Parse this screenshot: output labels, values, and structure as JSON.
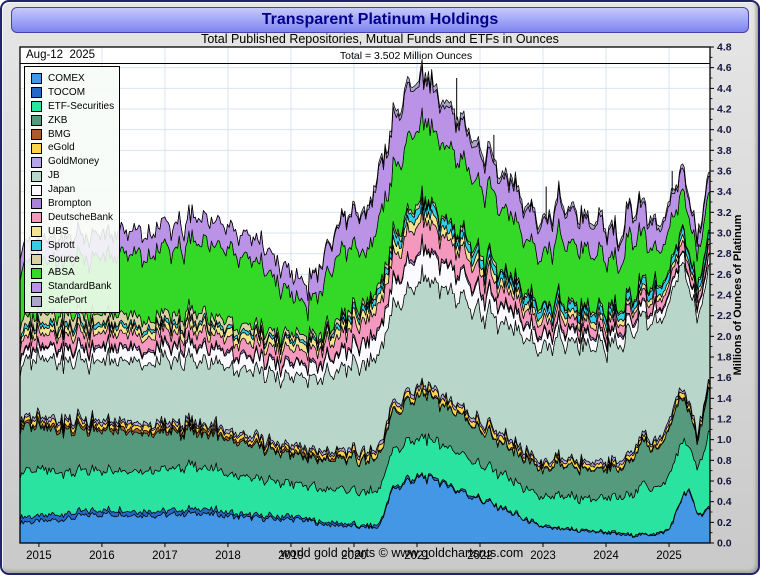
{
  "window": {
    "title": "Transparent Platinum Holdings"
  },
  "subtitle": "Total Published Repositories, Mutual Funds and ETFs in Ounces",
  "annotations": {
    "date_label": "Aug-12  2025",
    "total_label": "Total = 3.502 Million Ounces"
  },
  "footer": "world gold charts  © www.goldchartsrus.com",
  "colors": {
    "titlebar_top": "#c6c9fb",
    "titlebar_bottom": "#7e84ef",
    "title_text": "#00008c",
    "grid": "#d9e4f2",
    "axis_label": "#15153f"
  },
  "chart_data": {
    "type": "area",
    "stacked": true,
    "title": "Transparent Platinum Holdings",
    "ylabel": "Millions of Ounces of Platinum",
    "xlabel": "",
    "ylim": [
      0,
      4.8
    ],
    "y_step": 0.2,
    "xlim": [
      2014.7,
      2025.65
    ],
    "x_ticks": [
      2015,
      2016,
      2017,
      2018,
      2019,
      2020,
      2021,
      2022,
      2023,
      2024,
      2025
    ],
    "grid": true,
    "grid_color": "#d9e4f2",
    "legend_position": "top-left",
    "latest_total": 3.502,
    "x": [
      2014.7,
      2015.0,
      2015.25,
      2015.5,
      2015.75,
      2016.0,
      2016.25,
      2016.5,
      2016.75,
      2017.0,
      2017.25,
      2017.5,
      2017.75,
      2018.0,
      2018.25,
      2018.5,
      2018.75,
      2019.0,
      2019.25,
      2019.5,
      2019.75,
      2020.0,
      2020.2,
      2020.4,
      2020.6,
      2020.8,
      2021.0,
      2021.2,
      2021.4,
      2021.6,
      2021.8,
      2022.0,
      2022.25,
      2022.5,
      2022.75,
      2023.0,
      2023.25,
      2023.5,
      2023.75,
      2024.0,
      2024.2,
      2024.4,
      2024.6,
      2024.8,
      2025.0,
      2025.15,
      2025.3,
      2025.45,
      2025.6
    ],
    "series": [
      {
        "name": "COMEX",
        "color": "#4397e4",
        "values": [
          0.2,
          0.21,
          0.22,
          0.24,
          0.27,
          0.28,
          0.28,
          0.27,
          0.27,
          0.27,
          0.28,
          0.29,
          0.28,
          0.26,
          0.25,
          0.24,
          0.23,
          0.23,
          0.22,
          0.18,
          0.17,
          0.16,
          0.15,
          0.15,
          0.5,
          0.58,
          0.62,
          0.63,
          0.58,
          0.52,
          0.47,
          0.42,
          0.36,
          0.29,
          0.21,
          0.15,
          0.13,
          0.12,
          0.11,
          0.1,
          0.08,
          0.07,
          0.08,
          0.08,
          0.12,
          0.35,
          0.52,
          0.28,
          0.3
        ]
      },
      {
        "name": "TOCOM",
        "color": "#2468c8",
        "values": [
          0.05,
          0.05,
          0.05,
          0.05,
          0.04,
          0.04,
          0.04,
          0.04,
          0.04,
          0.04,
          0.04,
          0.04,
          0.04,
          0.04,
          0.03,
          0.03,
          0.03,
          0.03,
          0.02,
          0.02,
          0.02,
          0.02,
          0.02,
          0.02,
          0.02,
          0.02,
          0.02,
          0.02,
          0.02,
          0.02,
          0.02,
          0.01,
          0.01,
          0.01,
          0.01,
          0.01,
          0.01,
          0.01,
          0.01,
          0.01,
          0.01,
          0.01,
          0.01,
          0.01,
          0.01,
          0.01,
          0.01,
          0.01,
          0.01
        ]
      },
      {
        "name": "ETF-Securities",
        "color": "#2be3a0",
        "values": [
          0.45,
          0.44,
          0.42,
          0.4,
          0.39,
          0.38,
          0.38,
          0.38,
          0.39,
          0.4,
          0.41,
          0.41,
          0.4,
          0.38,
          0.37,
          0.35,
          0.33,
          0.32,
          0.31,
          0.32,
          0.33,
          0.33,
          0.32,
          0.33,
          0.35,
          0.36,
          0.37,
          0.37,
          0.36,
          0.35,
          0.34,
          0.33,
          0.32,
          0.3,
          0.29,
          0.28,
          0.32,
          0.31,
          0.31,
          0.32,
          0.34,
          0.4,
          0.48,
          0.44,
          0.5,
          0.55,
          0.45,
          0.42,
          0.68
        ]
      },
      {
        "name": "ZKB",
        "color": "#569a7e",
        "values": [
          0.43,
          0.42,
          0.41,
          0.4,
          0.4,
          0.39,
          0.38,
          0.37,
          0.36,
          0.35,
          0.34,
          0.33,
          0.33,
          0.32,
          0.31,
          0.3,
          0.29,
          0.28,
          0.27,
          0.28,
          0.29,
          0.31,
          0.31,
          0.32,
          0.35,
          0.38,
          0.42,
          0.42,
          0.4,
          0.38,
          0.36,
          0.34,
          0.31,
          0.29,
          0.27,
          0.26,
          0.3,
          0.29,
          0.28,
          0.28,
          0.27,
          0.32,
          0.42,
          0.36,
          0.44,
          0.46,
          0.35,
          0.26,
          0.4
        ]
      },
      {
        "name": "BMG",
        "color": "#a85c28",
        "values": [
          0.03,
          0.03,
          0.03,
          0.03,
          0.03,
          0.03,
          0.03,
          0.03,
          0.03,
          0.03,
          0.03,
          0.03,
          0.03,
          0.03,
          0.02,
          0.02,
          0.02,
          0.02,
          0.02,
          0.02,
          0.02,
          0.01,
          0.01,
          0.01,
          0.01,
          0.01,
          0.01,
          0.01,
          0.01,
          0.01,
          0.01,
          0.01,
          0.01,
          0.01,
          0.01,
          0.01,
          0.01,
          0.01,
          0.01,
          0.01,
          0.01,
          0.01,
          0.01,
          0.01,
          0.01,
          0.01,
          0.01,
          0.01,
          0.01
        ]
      },
      {
        "name": "eGold",
        "color": "#fbd44c",
        "values": [
          0.04,
          0.04,
          0.04,
          0.04,
          0.04,
          0.04,
          0.04,
          0.04,
          0.04,
          0.04,
          0.04,
          0.04,
          0.04,
          0.04,
          0.04,
          0.04,
          0.04,
          0.04,
          0.04,
          0.04,
          0.04,
          0.05,
          0.05,
          0.05,
          0.05,
          0.05,
          0.05,
          0.05,
          0.05,
          0.05,
          0.05,
          0.05,
          0.05,
          0.05,
          0.04,
          0.04,
          0.04,
          0.04,
          0.04,
          0.04,
          0.04,
          0.04,
          0.04,
          0.04,
          0.04,
          0.04,
          0.04,
          0.04,
          0.04
        ]
      },
      {
        "name": "GoldMoney",
        "color": "#b4a6e4",
        "values": [
          0.03,
          0.03,
          0.03,
          0.03,
          0.03,
          0.03,
          0.03,
          0.03,
          0.03,
          0.03,
          0.03,
          0.03,
          0.03,
          0.03,
          0.03,
          0.03,
          0.03,
          0.03,
          0.03,
          0.03,
          0.03,
          0.03,
          0.03,
          0.03,
          0.03,
          0.03,
          0.03,
          0.03,
          0.03,
          0.03,
          0.03,
          0.03,
          0.03,
          0.03,
          0.03,
          0.03,
          0.03,
          0.03,
          0.03,
          0.03,
          0.03,
          0.03,
          0.03,
          0.03,
          0.03,
          0.03,
          0.03,
          0.03,
          0.03
        ]
      },
      {
        "name": "JB",
        "color": "#b9d6ca",
        "values": [
          0.52,
          0.55,
          0.56,
          0.57,
          0.57,
          0.58,
          0.58,
          0.59,
          0.59,
          0.6,
          0.6,
          0.6,
          0.6,
          0.6,
          0.62,
          0.63,
          0.64,
          0.65,
          0.67,
          0.72,
          0.78,
          0.82,
          0.85,
          0.88,
          0.92,
          0.96,
          1.0,
          1.02,
          1.03,
          1.04,
          1.05,
          1.06,
          1.07,
          1.08,
          1.09,
          1.1,
          1.11,
          1.12,
          1.12,
          1.13,
          1.13,
          1.14,
          1.14,
          1.14,
          1.15,
          1.15,
          1.14,
          1.1,
          1.12
        ]
      },
      {
        "name": "Japan",
        "color": "#fafaff",
        "values": [
          0.1,
          0.1,
          0.11,
          0.11,
          0.11,
          0.12,
          0.12,
          0.12,
          0.12,
          0.12,
          0.13,
          0.13,
          0.13,
          0.13,
          0.13,
          0.13,
          0.12,
          0.12,
          0.12,
          0.13,
          0.15,
          0.18,
          0.2,
          0.22,
          0.22,
          0.26,
          0.27,
          0.26,
          0.25,
          0.23,
          0.21,
          0.19,
          0.17,
          0.15,
          0.13,
          0.12,
          0.11,
          0.11,
          0.1,
          0.1,
          0.1,
          0.1,
          0.1,
          0.09,
          0.09,
          0.09,
          0.09,
          0.09,
          0.1
        ]
      },
      {
        "name": "Brompton",
        "color": "#a982da",
        "values": [
          0.02,
          0.02,
          0.02,
          0.02,
          0.02,
          0.02,
          0.02,
          0.02,
          0.02,
          0.02,
          0.02,
          0.02,
          0.02,
          0.02,
          0.02,
          0.02,
          0.02,
          0.02,
          0.02,
          0.02,
          0.02,
          0.02,
          0.02,
          0.02,
          0.02,
          0.02,
          0.02,
          0.02,
          0.02,
          0.02,
          0.02,
          0.02,
          0.02,
          0.02,
          0.02,
          0.02,
          0.02,
          0.02,
          0.02,
          0.02,
          0.02,
          0.02,
          0.02,
          0.02,
          0.02,
          0.02,
          0.02,
          0.02,
          0.02
        ]
      },
      {
        "name": "DeutscheBank",
        "color": "#f598be",
        "values": [
          0.1,
          0.11,
          0.11,
          0.12,
          0.12,
          0.12,
          0.12,
          0.12,
          0.12,
          0.12,
          0.12,
          0.12,
          0.12,
          0.12,
          0.12,
          0.12,
          0.12,
          0.12,
          0.12,
          0.13,
          0.15,
          0.18,
          0.2,
          0.22,
          0.22,
          0.26,
          0.27,
          0.26,
          0.24,
          0.22,
          0.2,
          0.18,
          0.16,
          0.14,
          0.12,
          0.11,
          0.1,
          0.1,
          0.1,
          0.09,
          0.09,
          0.09,
          0.09,
          0.09,
          0.09,
          0.09,
          0.09,
          0.08,
          0.08
        ]
      },
      {
        "name": "UBS",
        "color": "#f2e491",
        "values": [
          0.06,
          0.06,
          0.06,
          0.06,
          0.06,
          0.06,
          0.06,
          0.06,
          0.06,
          0.06,
          0.07,
          0.07,
          0.07,
          0.07,
          0.07,
          0.07,
          0.07,
          0.07,
          0.07,
          0.07,
          0.08,
          0.08,
          0.08,
          0.08,
          0.09,
          0.09,
          0.09,
          0.09,
          0.08,
          0.08,
          0.08,
          0.07,
          0.07,
          0.07,
          0.06,
          0.06,
          0.06,
          0.06,
          0.06,
          0.06,
          0.05,
          0.05,
          0.05,
          0.05,
          0.05,
          0.05,
          0.05,
          0.05,
          0.05
        ]
      },
      {
        "name": "Sprott",
        "color": "#30cfe4",
        "values": [
          0.04,
          0.04,
          0.04,
          0.04,
          0.04,
          0.03,
          0.03,
          0.03,
          0.03,
          0.03,
          0.03,
          0.03,
          0.03,
          0.03,
          0.03,
          0.03,
          0.03,
          0.03,
          0.03,
          0.03,
          0.04,
          0.05,
          0.05,
          0.06,
          0.07,
          0.07,
          0.08,
          0.08,
          0.08,
          0.08,
          0.08,
          0.08,
          0.08,
          0.07,
          0.07,
          0.07,
          0.07,
          0.07,
          0.07,
          0.07,
          0.07,
          0.07,
          0.07,
          0.07,
          0.07,
          0.07,
          0.07,
          0.07,
          0.07
        ]
      },
      {
        "name": "Source",
        "color": "#d8d2a4",
        "values": [
          0.1,
          0.1,
          0.1,
          0.1,
          0.09,
          0.09,
          0.09,
          0.09,
          0.08,
          0.08,
          0.08,
          0.08,
          0.07,
          0.07,
          0.06,
          0.06,
          0.05,
          0.05,
          0.05,
          0.05,
          0.05,
          0.04,
          0.04,
          0.04,
          0.04,
          0.04,
          0.04,
          0.03,
          0.03,
          0.03,
          0.03,
          0.03,
          0.03,
          0.03,
          0.03,
          0.02,
          0.02,
          0.02,
          0.02,
          0.02,
          0.02,
          0.02,
          0.02,
          0.02,
          0.02,
          0.02,
          0.02,
          0.02,
          0.02
        ]
      },
      {
        "name": "ABSA",
        "color": "#33d926",
        "values": [
          0.5,
          0.52,
          0.53,
          0.54,
          0.55,
          0.56,
          0.58,
          0.6,
          0.62,
          0.64,
          0.66,
          0.68,
          0.7,
          0.7,
          0.68,
          0.62,
          0.5,
          0.38,
          0.28,
          0.45,
          0.62,
          0.6,
          0.45,
          0.65,
          0.62,
          0.7,
          0.72,
          0.75,
          0.72,
          0.7,
          0.68,
          0.65,
          0.62,
          0.58,
          0.52,
          0.48,
          0.6,
          0.58,
          0.55,
          0.5,
          0.4,
          0.6,
          0.45,
          0.3,
          0.4,
          0.35,
          0.35,
          0.28,
          0.38
        ]
      },
      {
        "name": "StandardBank",
        "color": "#bb93e6",
        "values": [
          0.2,
          0.2,
          0.21,
          0.21,
          0.22,
          0.22,
          0.22,
          0.22,
          0.22,
          0.22,
          0.22,
          0.23,
          0.23,
          0.22,
          0.22,
          0.21,
          0.2,
          0.2,
          0.2,
          0.24,
          0.28,
          0.32,
          0.38,
          0.45,
          0.46,
          0.5,
          0.42,
          0.4,
          0.38,
          0.36,
          0.34,
          0.3,
          0.3,
          0.3,
          0.3,
          0.3,
          0.3,
          0.3,
          0.28,
          0.28,
          0.24,
          0.26,
          0.26,
          0.22,
          0.22,
          0.2,
          0.18,
          0.14,
          0.16
        ]
      },
      {
        "name": "SafePort",
        "color": "#aaa6c9",
        "values": [
          0,
          0,
          0,
          0,
          0,
          0,
          0,
          0,
          0,
          0,
          0,
          0,
          0,
          0,
          0,
          0,
          0,
          0,
          0,
          0.02,
          0.02,
          0.03,
          0.04,
          0.05,
          0.05,
          0.05,
          0.05,
          0.05,
          0.05,
          0.05,
          0.05,
          0.05,
          0.05,
          0.05,
          0.04,
          0.04,
          0.04,
          0.04,
          0.04,
          0.04,
          0.04,
          0.04,
          0.04,
          0.04,
          0.04,
          0.04,
          0.04,
          0.04,
          0.04
        ]
      }
    ],
    "spikes": [
      {
        "x": 2021.63,
        "v": 4.5
      },
      {
        "x": 2022.22,
        "v": 3.95
      },
      {
        "x": 2023.05,
        "v": 3.45
      },
      {
        "x": 2024.52,
        "v": 3.35
      },
      {
        "x": 2025.05,
        "v": 3.6
      }
    ]
  }
}
